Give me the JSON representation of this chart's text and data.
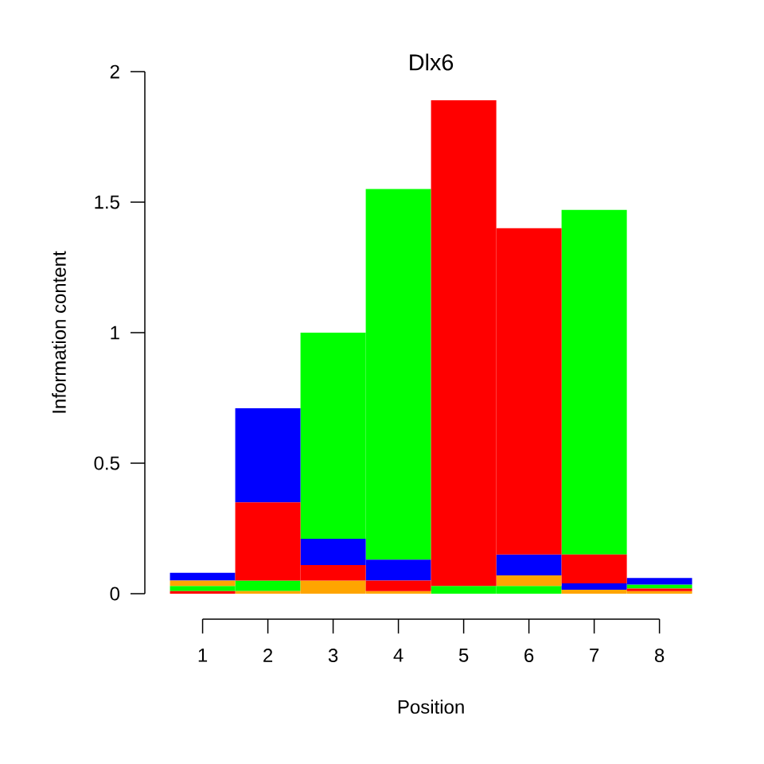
{
  "chart_data": {
    "type": "bar",
    "title": "Dlx6",
    "xlabel": "Position",
    "ylabel": "Information content",
    "categories": [
      "1",
      "2",
      "3",
      "4",
      "5",
      "6",
      "7",
      "8"
    ],
    "ylim": [
      0,
      2
    ],
    "yticks": [
      0,
      0.5,
      1,
      1.5,
      2
    ],
    "series": [
      {
        "color": "#00ff00",
        "values": [
          0.02,
          0.04,
          0.79,
          1.42,
          0.03,
          0.03,
          1.32,
          0.015
        ],
        "base": [
          0.01,
          0.01,
          0.21,
          0.13,
          0,
          0,
          0.15,
          0.02
        ]
      },
      {
        "color": "#0000ff",
        "values": [
          0.03,
          0.36,
          0.1,
          0.08,
          null,
          0.08,
          0.025,
          0.025
        ],
        "base": [
          0.05,
          0.35,
          0.11,
          0.05,
          null,
          0.07,
          0.015,
          0.035
        ]
      },
      {
        "color": "#ffa500",
        "values": [
          0.02,
          0.01,
          0.05,
          0.01,
          null,
          0.04,
          0.015,
          0.01
        ],
        "base": [
          0.03,
          0,
          0,
          0,
          null,
          0.03,
          0,
          0
        ]
      },
      {
        "color": "#ff0000",
        "values": [
          0.01,
          0.3,
          0.06,
          0.04,
          1.86,
          1.25,
          0.11,
          0.01
        ],
        "base": [
          0,
          0.05,
          0.05,
          0.01,
          0.03,
          0.15,
          0.04,
          0.01
        ]
      }
    ]
  }
}
